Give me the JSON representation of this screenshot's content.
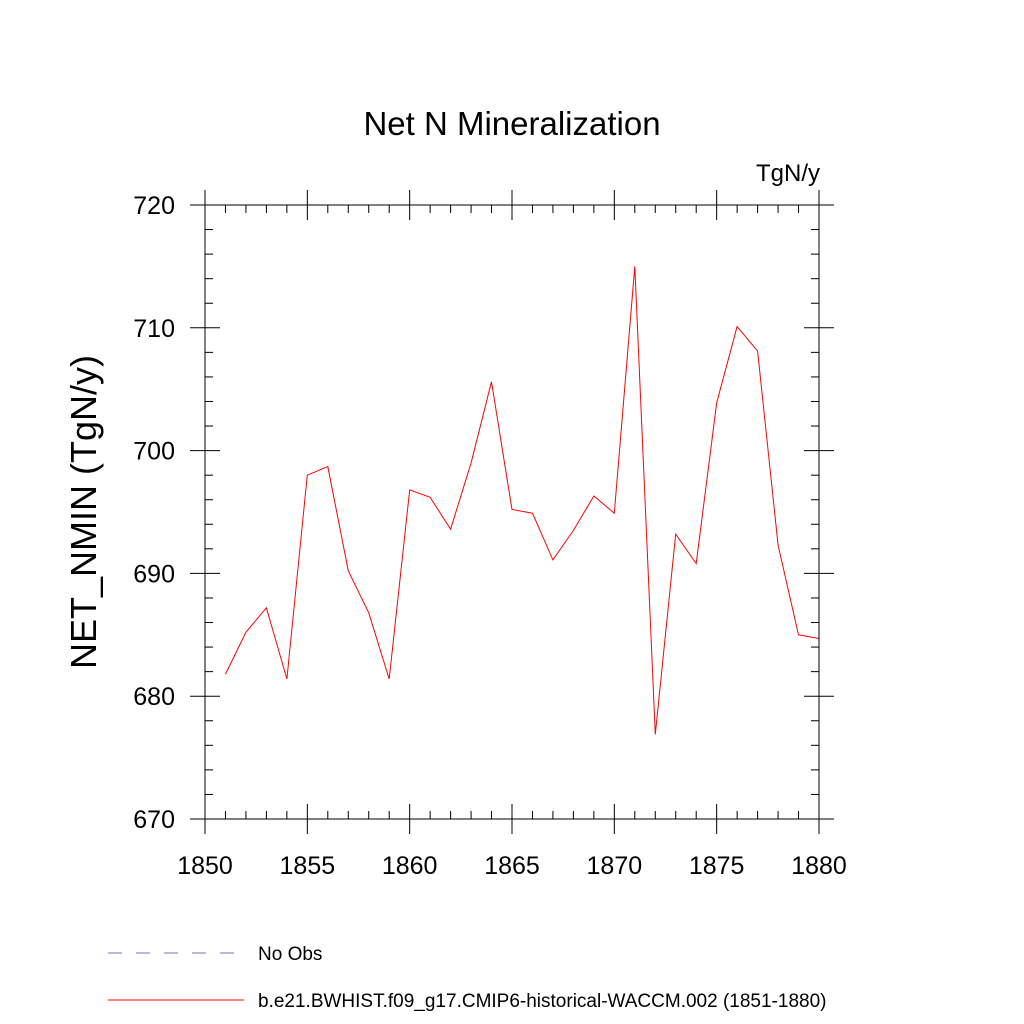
{
  "chart_data": {
    "type": "line",
    "title": "Net N Mineralization",
    "units_label": "TgN/y",
    "ylabel": "NET_NMIN  (TgN/y)",
    "xlabel": "",
    "xlim": [
      1850,
      1880
    ],
    "ylim": [
      670,
      720
    ],
    "x_ticks": [
      "1850",
      "1855",
      "1860",
      "1865",
      "1870",
      "1875",
      "1880"
    ],
    "y_ticks": [
      "670",
      "680",
      "690",
      "700",
      "710",
      "720"
    ],
    "x": [
      1851,
      1852,
      1853,
      1854,
      1855,
      1856,
      1857,
      1858,
      1859,
      1860,
      1861,
      1862,
      1863,
      1864,
      1865,
      1866,
      1867,
      1868,
      1869,
      1870,
      1871,
      1872,
      1873,
      1874,
      1875,
      1876,
      1877,
      1878,
      1879,
      1880
    ],
    "series": [
      {
        "name": "b.e21.BWHIST.f09_g17.CMIP6-historical-WACCM.002 (1851-1880)",
        "color": "#ff0000",
        "values": [
          681.8,
          685.2,
          687.2,
          681.4,
          698.0,
          698.7,
          690.2,
          686.8,
          681.4,
          696.8,
          696.2,
          693.6,
          699.0,
          705.6,
          695.2,
          694.9,
          691.1,
          693.5,
          696.3,
          694.9,
          715.0,
          676.9,
          693.2,
          690.8,
          703.9,
          710.1,
          708.1,
          692.3,
          685.0,
          684.7
        ]
      }
    ],
    "legend": {
      "placement": "bottom-left",
      "entries": [
        {
          "label": "No Obs",
          "style": "dashed",
          "color": "#7b6fbd"
        },
        {
          "label": "b.e21.BWHIST.f09_g17.CMIP6-historical-WACCM.002 (1851-1880)",
          "style": "solid",
          "color": "#ff0000"
        }
      ]
    }
  }
}
